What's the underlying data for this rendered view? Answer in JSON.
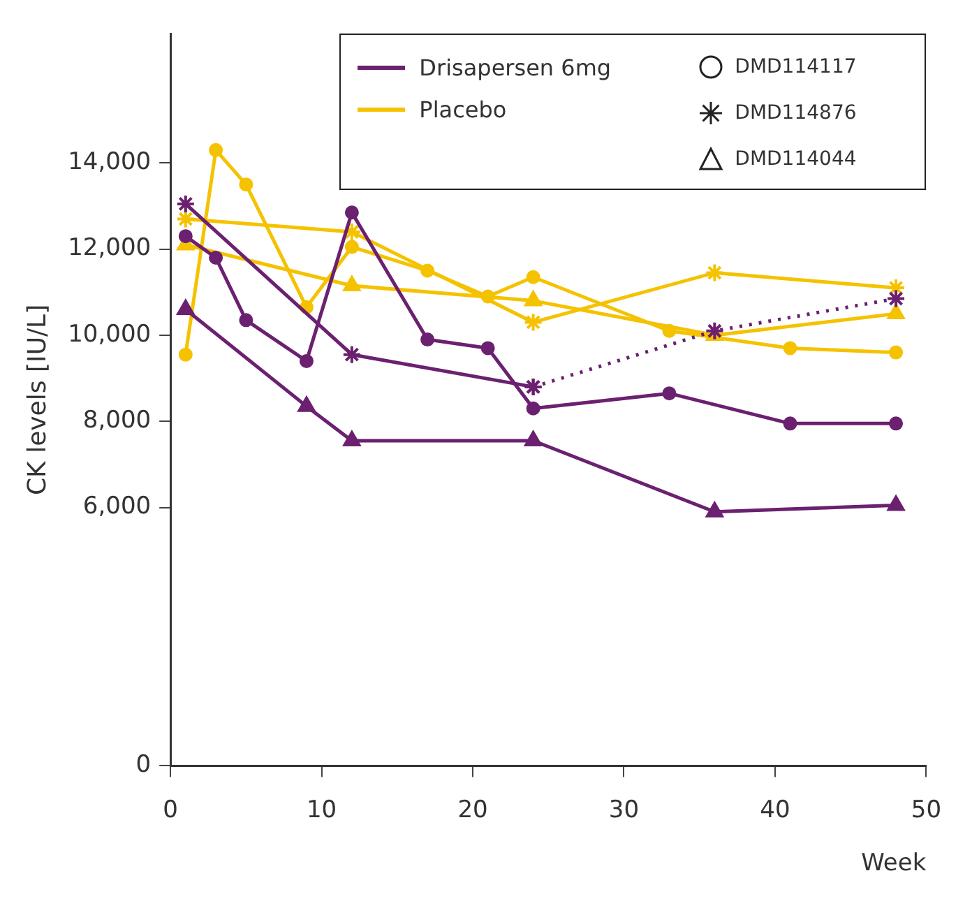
{
  "chart_data": {
    "type": "line",
    "xlabel": "Week",
    "ylabel": "CK levels [IU/L]",
    "xlim": [
      0,
      50
    ],
    "xticks": [
      0,
      10,
      20,
      30,
      40,
      50
    ],
    "ylim": [
      0,
      17000
    ],
    "yticks": [
      0,
      {
        "value": 6000,
        "label": "6,000"
      },
      {
        "value": 8000,
        "label": "8,000"
      },
      {
        "value": 10000,
        "label": "10,000"
      },
      {
        "value": 12000,
        "label": "12,000"
      },
      {
        "value": 14000,
        "label": "14,000"
      }
    ],
    "annotations": [
      "Drisapersen 6mg",
      "Placebo",
      "DMD114117",
      "DMD114876",
      "DMD114044"
    ],
    "series": [
      {
        "color": "#6b2070",
        "marker": "circle",
        "x": [
          1,
          3,
          5,
          9,
          12,
          17,
          21,
          24,
          33,
          41,
          48
        ],
        "values": [
          12300,
          11800,
          10350,
          9400,
          12850,
          9900,
          9700,
          8300,
          8650,
          7950,
          7950
        ]
      },
      {
        "color": "#6b2070",
        "marker": "cross",
        "x": [
          1,
          12,
          24
        ],
        "values": [
          13050,
          9550,
          8800
        ]
      },
      {
        "color": "#6b2070",
        "marker": "cross",
        "line_style": "dotted",
        "x": [
          24,
          36,
          48
        ],
        "values": [
          8800,
          10100,
          10850
        ]
      },
      {
        "color": "#6b2070",
        "marker": "triangle",
        "x": [
          1,
          9,
          12,
          24,
          36,
          48
        ],
        "values": [
          10600,
          8350,
          7550,
          7550,
          5900,
          6050
        ]
      },
      {
        "color": "#f5c200",
        "marker": "circle",
        "x": [
          1,
          3,
          5,
          9,
          12,
          17,
          21,
          24,
          33,
          41,
          48
        ],
        "values": [
          9550,
          14300,
          13500,
          10650,
          12050,
          11500,
          10900,
          11350,
          10100,
          9700,
          9600
        ]
      },
      {
        "color": "#f5c200",
        "marker": "cross",
        "x": [
          1,
          12,
          24,
          36,
          48
        ],
        "values": [
          12700,
          12400,
          10300,
          11450,
          11100
        ]
      },
      {
        "color": "#f5c200",
        "marker": "triangle",
        "x": [
          1,
          12,
          24,
          36,
          48
        ],
        "values": [
          12100,
          11150,
          10800,
          10000,
          10500
        ]
      }
    ]
  }
}
